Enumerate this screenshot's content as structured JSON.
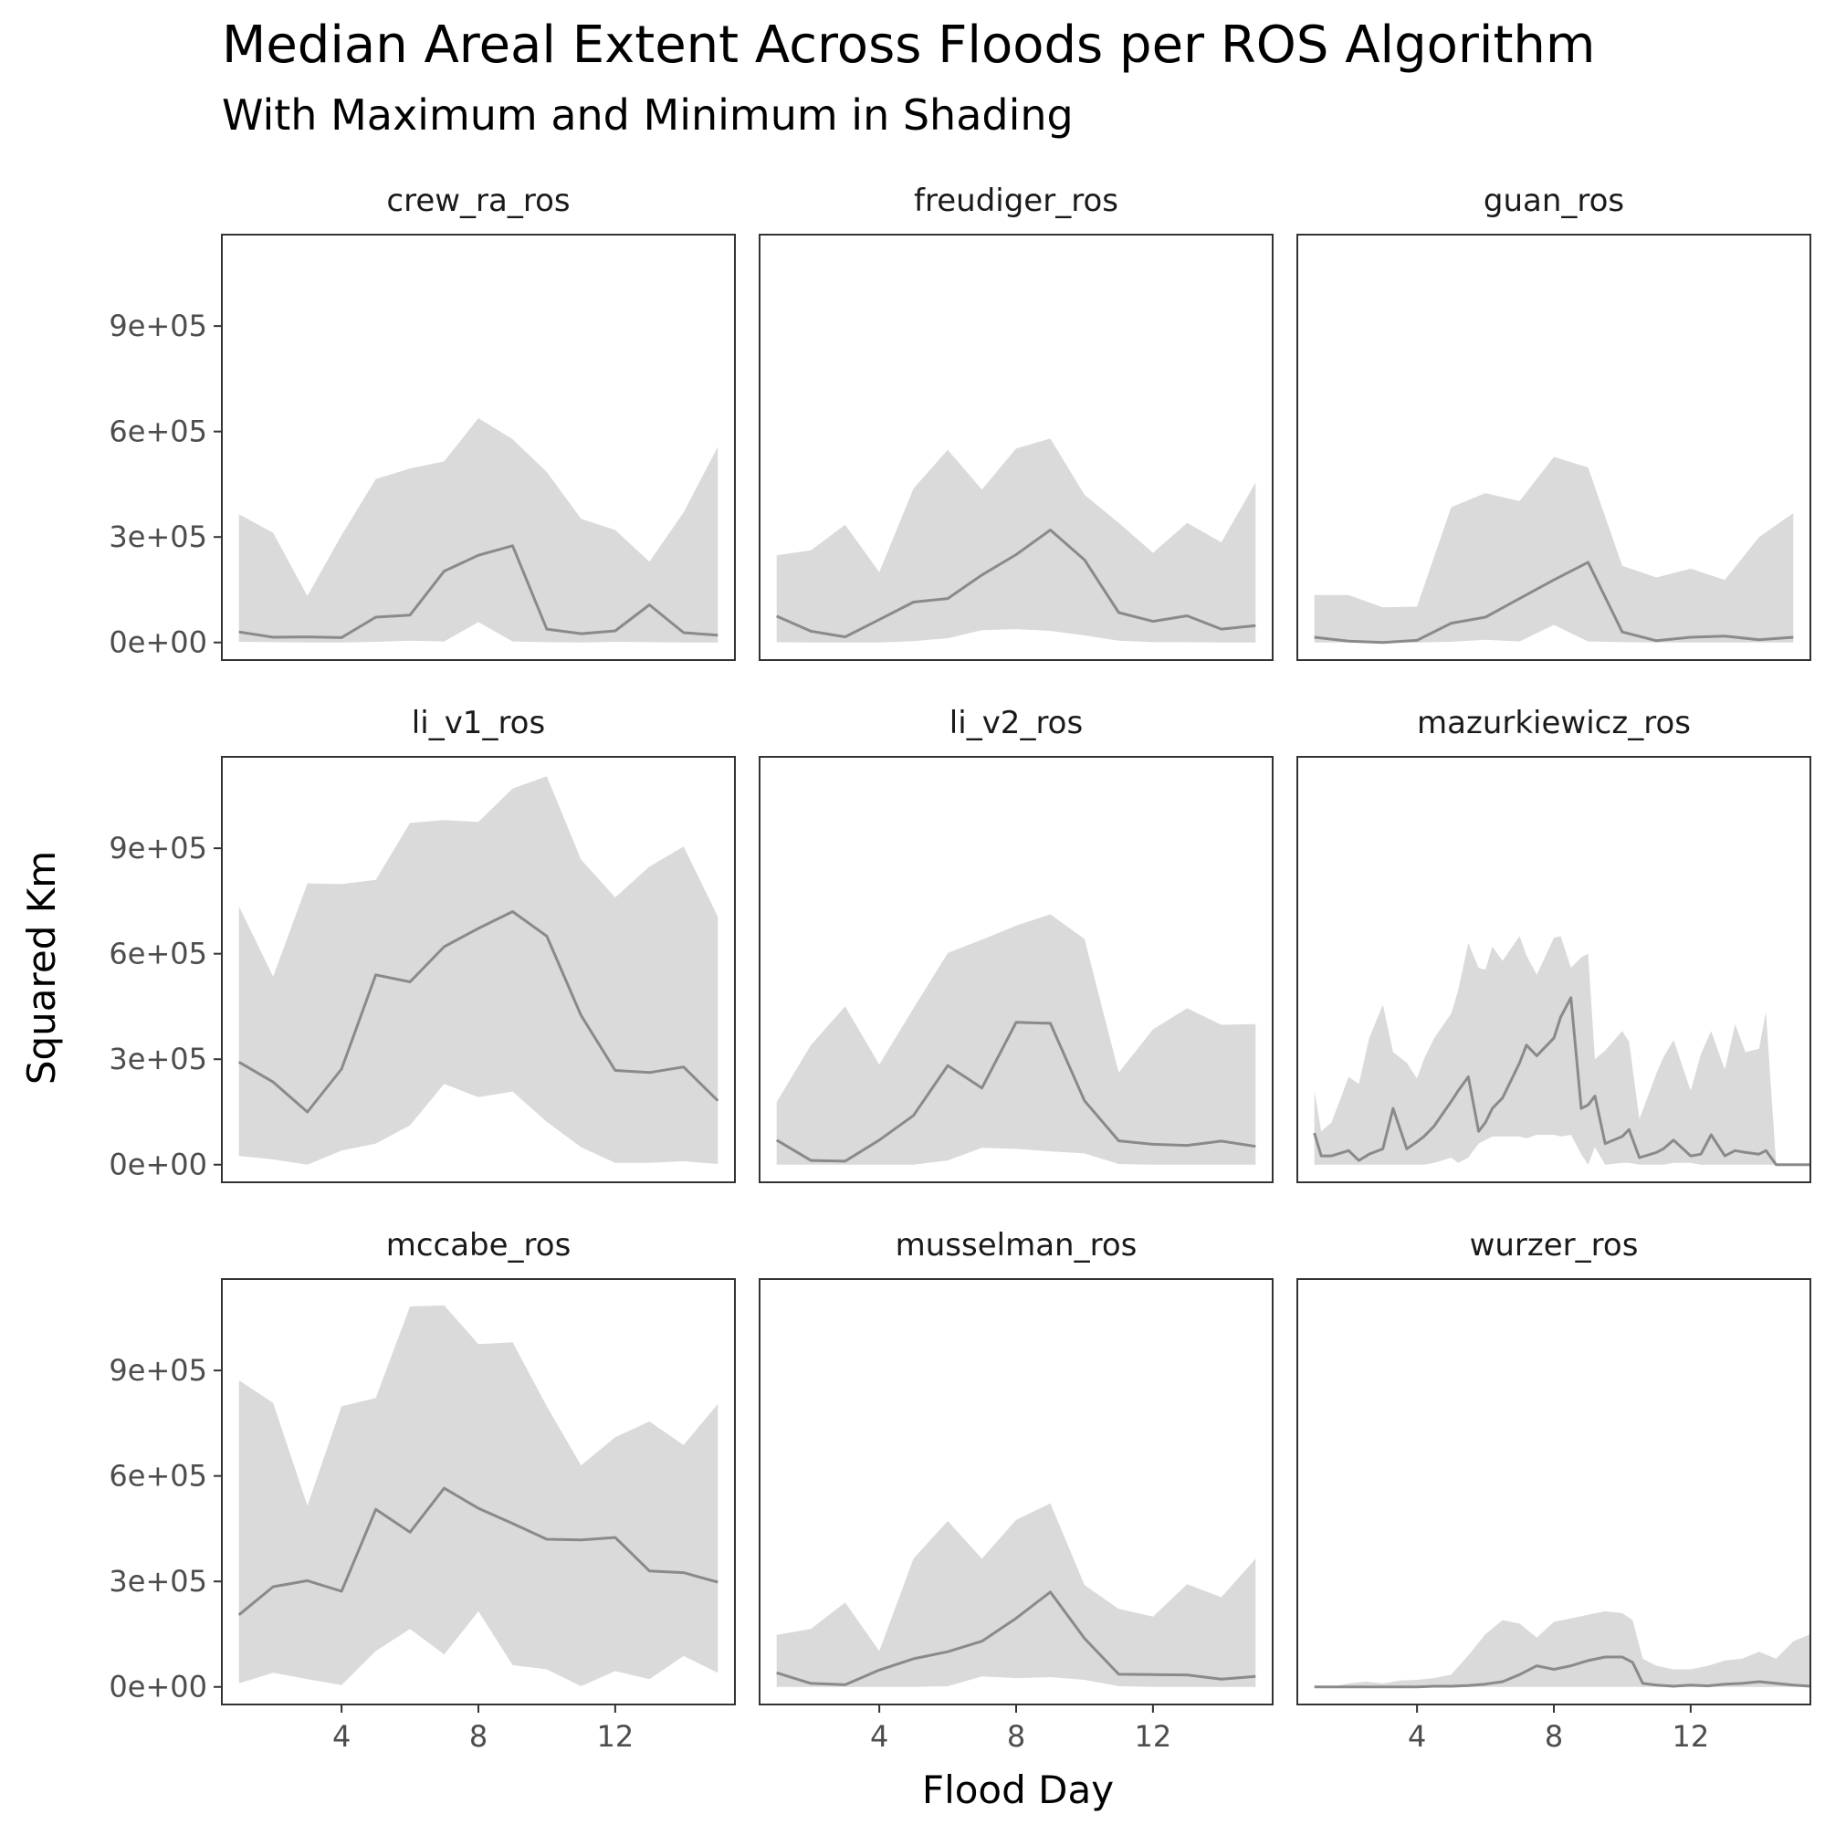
{
  "chart_data": {
    "type": "area",
    "title": "Median Areal Extent Across Floods per ROS Algorithm",
    "subtitle": "With Maximum and Minimum in Shading",
    "xlabel": "Flood Day",
    "ylabel": "Squared Km",
    "xlim": [
      0.5,
      15.5
    ],
    "ylim": [
      -50000,
      1160000
    ],
    "x_ticks": [
      4,
      8,
      12
    ],
    "y_ticks": [
      0,
      300000,
      600000,
      900000
    ],
    "y_tick_labels": [
      "0e+00",
      "3e+05",
      "6e+05",
      "9e+05"
    ],
    "x_tick_labels": [
      "4",
      "8",
      "12"
    ],
    "grid": false,
    "colors": {
      "median_line": "#8a8a8a",
      "ribbon": "#dadada",
      "panel_border": "#333333",
      "tick_text": "#4d4d4d"
    },
    "panels": [
      {
        "name": "crew_ra_ros",
        "x": [
          1,
          2,
          3,
          4,
          5,
          6,
          7,
          8,
          9,
          10,
          11,
          12,
          13,
          14,
          15
        ],
        "median": [
          30000,
          15000,
          16000,
          14000,
          72000,
          78000,
          203000,
          248000,
          275000,
          38000,
          25000,
          33000,
          107000,
          28000,
          21000
        ],
        "max": [
          365000,
          312000,
          132000,
          305000,
          465000,
          495000,
          515000,
          638000,
          578000,
          485000,
          352000,
          320000,
          230000,
          370000,
          557000
        ],
        "min": [
          2000,
          1000,
          0,
          0,
          2000,
          5000,
          3000,
          58000,
          3000,
          1000,
          0,
          2000,
          1000,
          0,
          0
        ]
      },
      {
        "name": "freudiger_ros",
        "x": [
          1,
          2,
          3,
          4,
          5,
          6,
          7,
          8,
          9,
          10,
          11,
          12,
          13,
          14,
          15
        ],
        "median": [
          75000,
          32000,
          16000,
          65000,
          115000,
          125000,
          192000,
          250000,
          320000,
          235000,
          85000,
          60000,
          76000,
          38000,
          48000
        ],
        "max": [
          248000,
          262000,
          335000,
          200000,
          438000,
          548000,
          435000,
          552000,
          580000,
          420000,
          340000,
          255000,
          340000,
          285000,
          455000
        ],
        "min": [
          1000,
          0,
          0,
          0,
          4000,
          12000,
          35000,
          38000,
          33000,
          20000,
          5000,
          1000,
          1000,
          0,
          0
        ]
      },
      {
        "name": "guan_ros",
        "x": [
          1,
          2,
          3,
          4,
          5,
          6,
          7,
          8,
          9,
          10,
          11,
          12,
          13,
          14,
          15
        ],
        "median": [
          15000,
          4000,
          0,
          6000,
          55000,
          72000,
          125000,
          178000,
          228000,
          30000,
          5000,
          15000,
          18000,
          8000,
          15000
        ],
        "max": [
          135000,
          135000,
          100000,
          102000,
          385000,
          425000,
          402000,
          528000,
          498000,
          218000,
          185000,
          210000,
          178000,
          300000,
          368000
        ],
        "min": [
          0,
          0,
          0,
          0,
          2000,
          8000,
          3000,
          50000,
          3000,
          1000,
          0,
          0,
          0,
          0,
          0
        ]
      },
      {
        "name": "li_v1_ros",
        "x": [
          1,
          2,
          3,
          4,
          5,
          6,
          7,
          8,
          9,
          10,
          11,
          12,
          13,
          14,
          15
        ],
        "median": [
          292000,
          235000,
          150000,
          272000,
          540000,
          520000,
          620000,
          672000,
          720000,
          650000,
          425000,
          268000,
          262000,
          278000,
          182000
        ],
        "max": [
          735000,
          535000,
          800000,
          798000,
          810000,
          972000,
          980000,
          975000,
          1070000,
          1105000,
          868000,
          760000,
          848000,
          905000,
          705000
        ],
        "min": [
          25000,
          15000,
          0,
          40000,
          60000,
          112000,
          230000,
          192000,
          208000,
          122000,
          50000,
          5000,
          5000,
          10000,
          2000
        ]
      },
      {
        "name": "li_v2_ros",
        "x": [
          1,
          2,
          3,
          4,
          5,
          6,
          7,
          8,
          9,
          10,
          11,
          12,
          13,
          14,
          15
        ],
        "median": [
          70000,
          12000,
          10000,
          70000,
          140000,
          282000,
          218000,
          405000,
          402000,
          182000,
          68000,
          58000,
          55000,
          67000,
          52000
        ],
        "max": [
          178000,
          340000,
          450000,
          285000,
          445000,
          602000,
          640000,
          680000,
          712000,
          642000,
          262000,
          385000,
          445000,
          398000,
          400000
        ],
        "min": [
          0,
          0,
          0,
          0,
          0,
          12000,
          48000,
          45000,
          38000,
          32000,
          2000,
          0,
          0,
          0,
          0
        ]
      },
      {
        "name": "mazurkiewicz_ros",
        "x": [
          1,
          1.2,
          1.5,
          2,
          2.3,
          2.6,
          3,
          3.3,
          3.7,
          4,
          4.2,
          4.5,
          5,
          5.2,
          5.5,
          5.8,
          6,
          6.2,
          6.5,
          7,
          7.2,
          7.5,
          8,
          8.2,
          8.5,
          8.8,
          9,
          9.2,
          9.5,
          10,
          10.2,
          10.5,
          11,
          11.2,
          11.5,
          12,
          12.3,
          12.6,
          13,
          13.3,
          13.6,
          14,
          14.2,
          14.5,
          14.8,
          15,
          15.2,
          15.5
        ],
        "median": [
          90000,
          25000,
          25000,
          40000,
          12000,
          30000,
          45000,
          160000,
          45000,
          65000,
          80000,
          110000,
          180000,
          210000,
          250000,
          95000,
          120000,
          160000,
          190000,
          290000,
          340000,
          310000,
          360000,
          420000,
          475000,
          160000,
          170000,
          195000,
          60000,
          80000,
          100000,
          20000,
          35000,
          45000,
          70000,
          25000,
          30000,
          85000,
          25000,
          40000,
          35000,
          30000,
          40000,
          0,
          0,
          0,
          0,
          0
        ],
        "max": [
          210000,
          95000,
          120000,
          250000,
          230000,
          360000,
          455000,
          320000,
          290000,
          245000,
          300000,
          360000,
          430000,
          495000,
          630000,
          560000,
          555000,
          620000,
          580000,
          650000,
          595000,
          540000,
          645000,
          650000,
          560000,
          590000,
          600000,
          300000,
          325000,
          380000,
          350000,
          130000,
          260000,
          305000,
          355000,
          210000,
          315000,
          380000,
          270000,
          400000,
          320000,
          330000,
          435000,
          0,
          0,
          0,
          0,
          0
        ],
        "min": [
          0,
          0,
          0,
          0,
          0,
          0,
          0,
          0,
          0,
          0,
          0,
          5000,
          20000,
          5000,
          20000,
          60000,
          70000,
          80000,
          80000,
          80000,
          75000,
          85000,
          85000,
          80000,
          85000,
          30000,
          0,
          50000,
          0,
          5000,
          5000,
          0,
          0,
          0,
          5000,
          5000,
          0,
          0,
          0,
          0,
          0,
          0,
          0,
          0,
          0,
          0,
          0,
          0
        ]
      },
      {
        "name": "mccabe_ros",
        "x": [
          1,
          2,
          3,
          4,
          5,
          6,
          7,
          8,
          9,
          10,
          11,
          12,
          13,
          14,
          15
        ],
        "median": [
          205000,
          285000,
          302000,
          272000,
          505000,
          440000,
          565000,
          508000,
          465000,
          420000,
          418000,
          425000,
          330000,
          325000,
          298000
        ],
        "max": [
          872000,
          808000,
          515000,
          798000,
          822000,
          1082000,
          1085000,
          975000,
          980000,
          798000,
          630000,
          710000,
          755000,
          688000,
          805000
        ],
        "min": [
          10000,
          40000,
          22000,
          5000,
          102000,
          165000,
          92000,
          215000,
          62000,
          50000,
          2000,
          45000,
          22000,
          88000,
          40000
        ]
      },
      {
        "name": "musselman_ros",
        "x": [
          1,
          2,
          3,
          4,
          5,
          6,
          7,
          8,
          9,
          10,
          11,
          12,
          13,
          14,
          15
        ],
        "median": [
          40000,
          10000,
          6000,
          48000,
          80000,
          100000,
          130000,
          195000,
          270000,
          138000,
          36000,
          35000,
          34000,
          22000,
          30000
        ],
        "max": [
          148000,
          165000,
          240000,
          102000,
          365000,
          472000,
          365000,
          475000,
          522000,
          290000,
          222000,
          200000,
          292000,
          255000,
          365000
        ],
        "min": [
          0,
          0,
          0,
          0,
          0,
          2000,
          30000,
          25000,
          28000,
          20000,
          2000,
          0,
          0,
          0,
          0
        ]
      },
      {
        "name": "wurzer_ros",
        "x": [
          1,
          1.5,
          2,
          2.5,
          3,
          3.5,
          4,
          4.5,
          5,
          5.5,
          6,
          6.5,
          7,
          7.5,
          8,
          8.5,
          9,
          9.5,
          10,
          10.3,
          10.6,
          11,
          11.5,
          12,
          12.5,
          13,
          13.5,
          14,
          14.5,
          15,
          15.5
        ],
        "median": [
          0,
          0,
          0,
          0,
          0,
          0,
          0,
          2000,
          2000,
          4000,
          8000,
          15000,
          35000,
          60000,
          50000,
          60000,
          75000,
          85000,
          85000,
          70000,
          10000,
          5000,
          2000,
          5000,
          3000,
          8000,
          10000,
          15000,
          10000,
          5000,
          2000
        ],
        "max": [
          0,
          0,
          10000,
          15000,
          10000,
          18000,
          20000,
          25000,
          35000,
          90000,
          150000,
          190000,
          180000,
          140000,
          185000,
          195000,
          205000,
          215000,
          210000,
          190000,
          80000,
          60000,
          50000,
          50000,
          60000,
          75000,
          80000,
          100000,
          80000,
          130000,
          150000
        ],
        "min": [
          0,
          0,
          0,
          0,
          0,
          0,
          0,
          0,
          0,
          0,
          0,
          0,
          0,
          0,
          0,
          0,
          0,
          0,
          0,
          0,
          0,
          0,
          0,
          0,
          0,
          0,
          0,
          0,
          0,
          0,
          0
        ]
      }
    ]
  }
}
